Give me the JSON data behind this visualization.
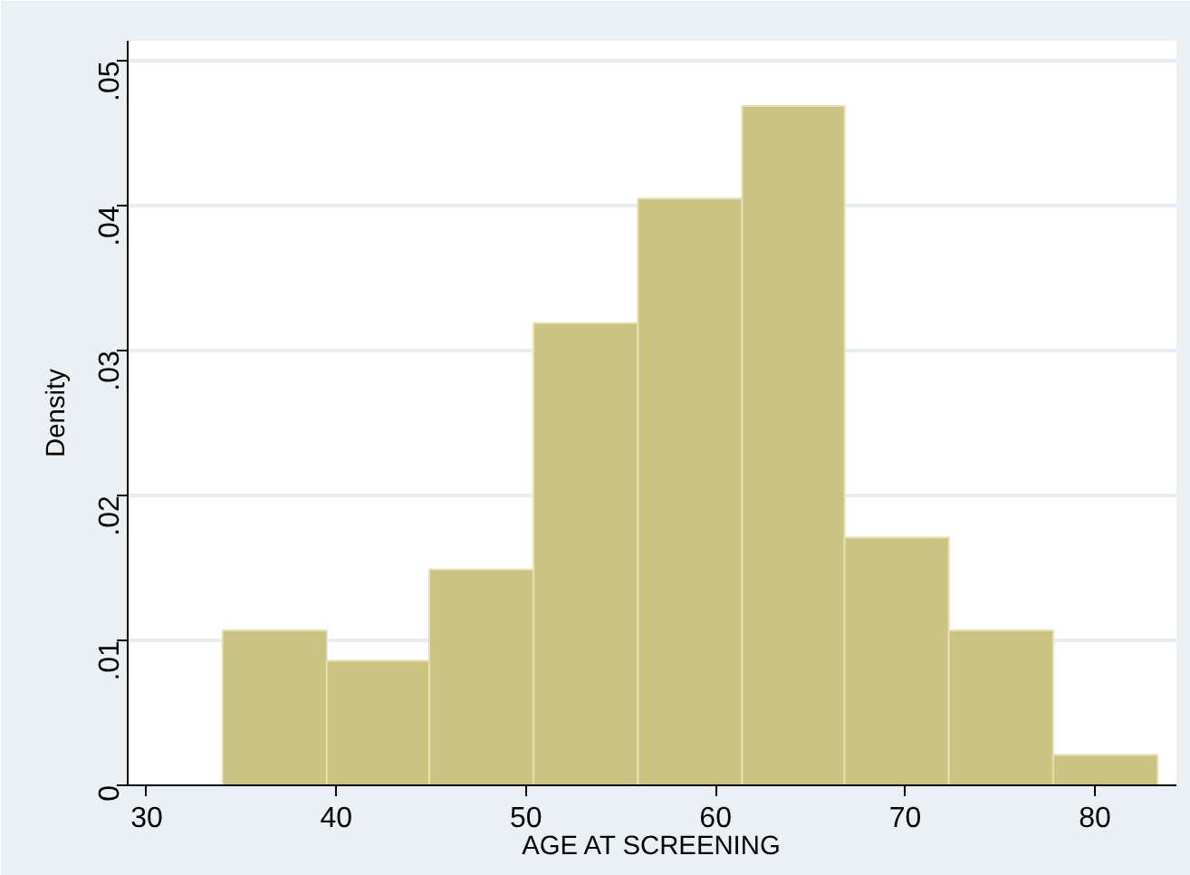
{
  "chart_data": {
    "type": "histogram",
    "xlabel": "AGE AT SCREENING",
    "ylabel": "Density",
    "bins": [
      34.0,
      39.5,
      44.9,
      50.4,
      55.9,
      61.4,
      66.8,
      72.3,
      77.8,
      83.3
    ],
    "values": [
      0.0107,
      0.0086,
      0.0149,
      0.0319,
      0.0405,
      0.0469,
      0.0171,
      0.0107,
      0.0021
    ],
    "color": "#cbc382",
    "xlim": [
      29,
      84.3
    ],
    "ylim": [
      0,
      0.0514
    ],
    "xticks": [
      30,
      40,
      50,
      60,
      70,
      80
    ],
    "yticks": [
      0,
      {
        "value": 0.01,
        "label": ".01"
      },
      {
        "value": 0.02,
        "label": ".02"
      },
      {
        "value": 0.03,
        "label": ".03"
      },
      {
        "value": 0.04,
        "label": ".04"
      },
      {
        "value": 0.05,
        "label": ".05"
      }
    ],
    "grid": "y"
  }
}
